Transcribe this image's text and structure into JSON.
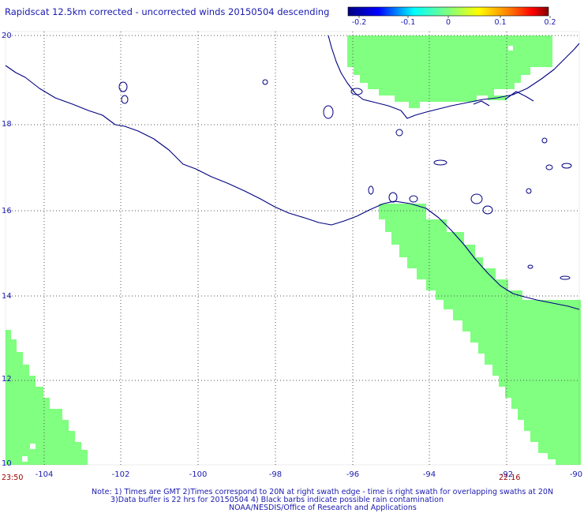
{
  "title": "Rapidscat 12.5km corrected - uncorrected winds 20150504 descending",
  "colorbar": {
    "ticks": [
      "-0.2",
      "-0.1",
      "0",
      "0.1",
      "0.2"
    ],
    "stops": [
      "#000080",
      "#0000ff",
      "#00ffff",
      "#80ff80",
      "#ffff00",
      "#ff8000",
      "#ff0000",
      "#800000"
    ]
  },
  "axes": {
    "lon_labels": [
      "-104",
      "-102",
      "-100",
      "-98",
      "-96",
      "-94",
      "-92",
      "-90"
    ],
    "lat_labels": [
      "10",
      "12",
      "14",
      "16",
      "18",
      "20"
    ]
  },
  "times": {
    "left": "23:50",
    "right": "22:16"
  },
  "notes": {
    "line1": "Note: 1) Times are GMT 2)Times correspond to 20N at right swath edge - time is right swath for overlapping swaths at 20N",
    "line2": "3)Data buffer is 22 hrs for 20150504 4) Black barbs indicate possible rain contamination",
    "line3": "NOAA/NESDIS/Office of Research and Applications"
  },
  "colors": {
    "swath": "#80ff80",
    "coast": "#000080",
    "grid": "#555555",
    "label": "#1a1ab0",
    "time": "#990000"
  }
}
